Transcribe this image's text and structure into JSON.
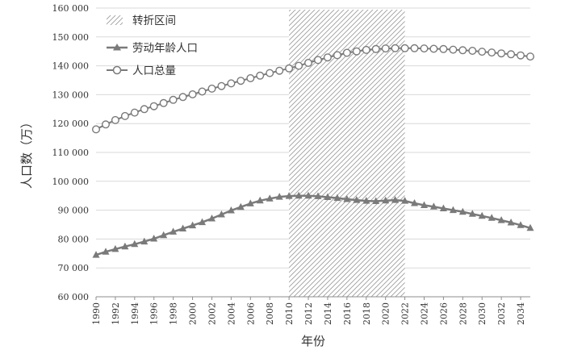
{
  "chart_data": {
    "type": "line",
    "xlabel": "年份",
    "ylabel": "人口数（万）",
    "ylim": [
      60000,
      160000
    ],
    "xlim": [
      1990,
      2035
    ],
    "yticks": [
      "60 000",
      "70 000",
      "80 000",
      "90 000",
      "100 000",
      "110 000",
      "120 000",
      "130 000",
      "140 000",
      "150 000",
      "160 000"
    ],
    "yticks_values": [
      60000,
      70000,
      80000,
      90000,
      100000,
      110000,
      120000,
      130000,
      140000,
      150000,
      160000
    ],
    "xticks": [
      "1990",
      "1992",
      "1994",
      "1996",
      "1998",
      "2000",
      "2002",
      "2004",
      "2006",
      "2008",
      "2010",
      "2012",
      "2014",
      "2016",
      "2018",
      "2020",
      "2022",
      "2024",
      "2026",
      "2028",
      "2030",
      "2032",
      "2034"
    ],
    "grid": "horizontal",
    "legend_position": "top-left",
    "shaded_region": {
      "name": "转折区间",
      "x_range": [
        2010,
        2022
      ]
    },
    "x": [
      1990,
      1991,
      1992,
      1993,
      1994,
      1995,
      1996,
      1997,
      1998,
      1999,
      2000,
      2001,
      2002,
      2003,
      2004,
      2005,
      2006,
      2007,
      2008,
      2009,
      2010,
      2011,
      2012,
      2013,
      2014,
      2015,
      2016,
      2017,
      2018,
      2019,
      2020,
      2021,
      2022,
      2023,
      2024,
      2025,
      2026,
      2027,
      2028,
      2029,
      2030,
      2031,
      2032,
      2033,
      2034,
      2035
    ],
    "series": [
      {
        "name": "劳动年龄人口",
        "marker": "triangle",
        "values": [
          74500,
          75600,
          76500,
          77400,
          78200,
          79100,
          80100,
          81300,
          82500,
          83600,
          84700,
          85800,
          87100,
          88500,
          89900,
          91100,
          92300,
          93300,
          94000,
          94600,
          94900,
          95000,
          95000,
          94800,
          94500,
          94200,
          93800,
          93500,
          93200,
          93100,
          93300,
          93500,
          93200,
          92400,
          91700,
          91200,
          90600,
          90000,
          89400,
          88700,
          88000,
          87300,
          86500,
          85700,
          84800,
          83800
        ]
      },
      {
        "name": "人口总量",
        "marker": "circle",
        "values": [
          118000,
          119700,
          121200,
          122600,
          123800,
          125000,
          126000,
          127100,
          128200,
          129200,
          130100,
          131100,
          132100,
          133000,
          133900,
          134800,
          135700,
          136600,
          137500,
          138300,
          139100,
          140000,
          141000,
          142000,
          142900,
          143700,
          144500,
          145000,
          145500,
          145800,
          146000,
          146100,
          146100,
          146100,
          146000,
          145900,
          145800,
          145600,
          145400,
          145200,
          144900,
          144600,
          144300,
          144000,
          143600,
          143200
        ]
      }
    ]
  }
}
